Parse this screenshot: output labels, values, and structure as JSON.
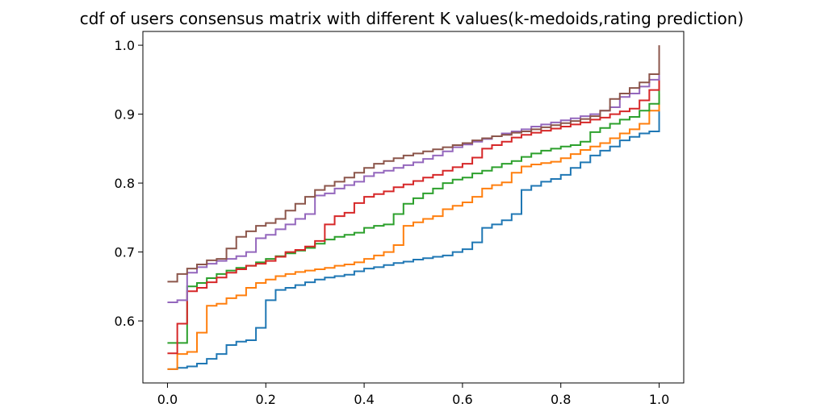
{
  "chart_data": {
    "type": "line",
    "title": "cdf of users consensus matrix with different K values(k-medoids,rating prediction)",
    "xlabel": "",
    "ylabel": "",
    "xlim": [
      -0.05,
      1.05
    ],
    "ylim": [
      0.51,
      1.02
    ],
    "x_ticks": [
      "0.0",
      "0.2",
      "0.4",
      "0.6",
      "0.8",
      "1.0"
    ],
    "x_tick_values": [
      0.0,
      0.2,
      0.4,
      0.6,
      0.8,
      1.0
    ],
    "y_ticks": [
      "0.6",
      "0.7",
      "0.8",
      "0.9",
      "1.0"
    ],
    "y_tick_values": [
      0.6,
      0.7,
      0.8,
      0.9,
      1.0
    ],
    "grid": false,
    "legend": "none",
    "series": [
      {
        "color": "#1f77b4",
        "step": "post",
        "x": [
          0.0,
          0.02,
          0.04,
          0.06,
          0.08,
          0.1,
          0.12,
          0.14,
          0.16,
          0.18,
          0.2,
          0.22,
          0.24,
          0.26,
          0.28,
          0.3,
          0.32,
          0.34,
          0.36,
          0.38,
          0.4,
          0.42,
          0.44,
          0.46,
          0.48,
          0.5,
          0.52,
          0.54,
          0.56,
          0.58,
          0.6,
          0.62,
          0.64,
          0.66,
          0.68,
          0.7,
          0.72,
          0.74,
          0.76,
          0.78,
          0.8,
          0.82,
          0.84,
          0.86,
          0.88,
          0.9,
          0.92,
          0.94,
          0.96,
          0.98,
          1.0
        ],
        "y": [
          0.53,
          0.532,
          0.534,
          0.538,
          0.545,
          0.552,
          0.565,
          0.57,
          0.572,
          0.59,
          0.63,
          0.645,
          0.648,
          0.652,
          0.656,
          0.66,
          0.663,
          0.665,
          0.667,
          0.672,
          0.676,
          0.678,
          0.681,
          0.684,
          0.686,
          0.689,
          0.691,
          0.693,
          0.695,
          0.7,
          0.704,
          0.714,
          0.735,
          0.74,
          0.746,
          0.755,
          0.79,
          0.796,
          0.802,
          0.806,
          0.812,
          0.822,
          0.83,
          0.84,
          0.847,
          0.853,
          0.862,
          0.867,
          0.872,
          0.875,
          0.905
        ]
      },
      {
        "color": "#ff7f0e",
        "step": "post",
        "x": [
          0.0,
          0.02,
          0.04,
          0.06,
          0.08,
          0.1,
          0.12,
          0.14,
          0.16,
          0.18,
          0.2,
          0.22,
          0.24,
          0.26,
          0.28,
          0.3,
          0.32,
          0.34,
          0.36,
          0.38,
          0.4,
          0.42,
          0.44,
          0.46,
          0.48,
          0.5,
          0.52,
          0.54,
          0.56,
          0.58,
          0.6,
          0.62,
          0.64,
          0.66,
          0.68,
          0.7,
          0.72,
          0.74,
          0.76,
          0.78,
          0.8,
          0.82,
          0.84,
          0.86,
          0.88,
          0.9,
          0.92,
          0.94,
          0.96,
          0.98,
          1.0
        ],
        "y": [
          0.53,
          0.552,
          0.555,
          0.583,
          0.622,
          0.625,
          0.633,
          0.637,
          0.648,
          0.655,
          0.66,
          0.665,
          0.668,
          0.671,
          0.673,
          0.675,
          0.677,
          0.68,
          0.682,
          0.685,
          0.69,
          0.695,
          0.7,
          0.71,
          0.738,
          0.743,
          0.748,
          0.752,
          0.762,
          0.767,
          0.772,
          0.78,
          0.792,
          0.797,
          0.801,
          0.815,
          0.824,
          0.827,
          0.829,
          0.831,
          0.836,
          0.842,
          0.848,
          0.853,
          0.858,
          0.865,
          0.872,
          0.878,
          0.886,
          0.905,
          0.93
        ]
      },
      {
        "color": "#2ca02c",
        "step": "post",
        "x": [
          0.0,
          0.02,
          0.04,
          0.06,
          0.08,
          0.1,
          0.12,
          0.14,
          0.16,
          0.18,
          0.2,
          0.22,
          0.24,
          0.26,
          0.28,
          0.3,
          0.32,
          0.34,
          0.36,
          0.38,
          0.4,
          0.42,
          0.44,
          0.46,
          0.48,
          0.5,
          0.52,
          0.54,
          0.56,
          0.58,
          0.6,
          0.62,
          0.64,
          0.66,
          0.68,
          0.7,
          0.72,
          0.74,
          0.76,
          0.78,
          0.8,
          0.82,
          0.84,
          0.86,
          0.88,
          0.9,
          0.92,
          0.94,
          0.96,
          0.98,
          1.0
        ],
        "y": [
          0.568,
          0.568,
          0.65,
          0.655,
          0.662,
          0.668,
          0.673,
          0.677,
          0.68,
          0.685,
          0.69,
          0.694,
          0.698,
          0.702,
          0.706,
          0.712,
          0.718,
          0.722,
          0.725,
          0.728,
          0.735,
          0.738,
          0.74,
          0.755,
          0.77,
          0.778,
          0.785,
          0.792,
          0.8,
          0.805,
          0.808,
          0.814,
          0.818,
          0.823,
          0.828,
          0.832,
          0.838,
          0.843,
          0.847,
          0.85,
          0.853,
          0.855,
          0.86,
          0.874,
          0.88,
          0.886,
          0.892,
          0.896,
          0.905,
          0.915,
          0.95
        ]
      },
      {
        "color": "#d62728",
        "step": "post",
        "x": [
          0.0,
          0.02,
          0.04,
          0.06,
          0.08,
          0.1,
          0.12,
          0.14,
          0.16,
          0.18,
          0.2,
          0.22,
          0.24,
          0.26,
          0.28,
          0.3,
          0.32,
          0.34,
          0.36,
          0.38,
          0.4,
          0.42,
          0.44,
          0.46,
          0.48,
          0.5,
          0.52,
          0.54,
          0.56,
          0.58,
          0.6,
          0.62,
          0.64,
          0.66,
          0.68,
          0.7,
          0.72,
          0.74,
          0.76,
          0.78,
          0.8,
          0.82,
          0.84,
          0.86,
          0.88,
          0.9,
          0.92,
          0.94,
          0.96,
          0.98,
          1.0
        ],
        "y": [
          0.553,
          0.596,
          0.643,
          0.648,
          0.656,
          0.663,
          0.67,
          0.675,
          0.68,
          0.683,
          0.687,
          0.693,
          0.7,
          0.703,
          0.708,
          0.716,
          0.74,
          0.752,
          0.757,
          0.771,
          0.78,
          0.784,
          0.788,
          0.794,
          0.798,
          0.803,
          0.808,
          0.812,
          0.818,
          0.823,
          0.828,
          0.837,
          0.85,
          0.855,
          0.86,
          0.866,
          0.87,
          0.873,
          0.876,
          0.879,
          0.882,
          0.885,
          0.888,
          0.892,
          0.895,
          0.9,
          0.904,
          0.908,
          0.92,
          0.935,
          0.955
        ]
      },
      {
        "color": "#9467bd",
        "step": "post",
        "x": [
          0.0,
          0.02,
          0.04,
          0.06,
          0.08,
          0.1,
          0.12,
          0.14,
          0.16,
          0.18,
          0.2,
          0.22,
          0.24,
          0.26,
          0.28,
          0.3,
          0.32,
          0.34,
          0.36,
          0.38,
          0.4,
          0.42,
          0.44,
          0.46,
          0.48,
          0.5,
          0.52,
          0.54,
          0.56,
          0.58,
          0.6,
          0.62,
          0.64,
          0.66,
          0.68,
          0.7,
          0.72,
          0.74,
          0.76,
          0.78,
          0.8,
          0.82,
          0.84,
          0.86,
          0.88,
          0.9,
          0.92,
          0.94,
          0.96,
          0.98,
          1.0
        ],
        "y": [
          0.627,
          0.63,
          0.67,
          0.678,
          0.683,
          0.687,
          0.69,
          0.694,
          0.7,
          0.72,
          0.725,
          0.733,
          0.74,
          0.748,
          0.755,
          0.782,
          0.785,
          0.792,
          0.797,
          0.802,
          0.81,
          0.815,
          0.818,
          0.822,
          0.826,
          0.83,
          0.835,
          0.84,
          0.846,
          0.852,
          0.856,
          0.86,
          0.864,
          0.868,
          0.872,
          0.875,
          0.878,
          0.882,
          0.885,
          0.888,
          0.891,
          0.894,
          0.897,
          0.9,
          0.905,
          0.91,
          0.925,
          0.93,
          0.94,
          0.95,
          0.96
        ]
      },
      {
        "color": "#8c564b",
        "step": "post",
        "x": [
          0.0,
          0.02,
          0.04,
          0.06,
          0.08,
          0.1,
          0.12,
          0.14,
          0.16,
          0.18,
          0.2,
          0.22,
          0.24,
          0.26,
          0.28,
          0.3,
          0.32,
          0.34,
          0.36,
          0.38,
          0.4,
          0.42,
          0.44,
          0.46,
          0.48,
          0.5,
          0.52,
          0.54,
          0.56,
          0.58,
          0.6,
          0.62,
          0.64,
          0.66,
          0.68,
          0.7,
          0.72,
          0.74,
          0.76,
          0.78,
          0.8,
          0.82,
          0.84,
          0.86,
          0.88,
          0.9,
          0.92,
          0.94,
          0.96,
          0.98,
          1.0
        ],
        "y": [
          0.657,
          0.668,
          0.676,
          0.682,
          0.688,
          0.69,
          0.705,
          0.722,
          0.73,
          0.738,
          0.742,
          0.748,
          0.76,
          0.77,
          0.78,
          0.79,
          0.796,
          0.802,
          0.808,
          0.815,
          0.822,
          0.828,
          0.832,
          0.836,
          0.84,
          0.843,
          0.846,
          0.849,
          0.852,
          0.855,
          0.858,
          0.862,
          0.865,
          0.868,
          0.87,
          0.873,
          0.875,
          0.878,
          0.881,
          0.884,
          0.887,
          0.89,
          0.893,
          0.897,
          0.905,
          0.922,
          0.93,
          0.938,
          0.946,
          0.958,
          1.0
        ]
      }
    ]
  }
}
